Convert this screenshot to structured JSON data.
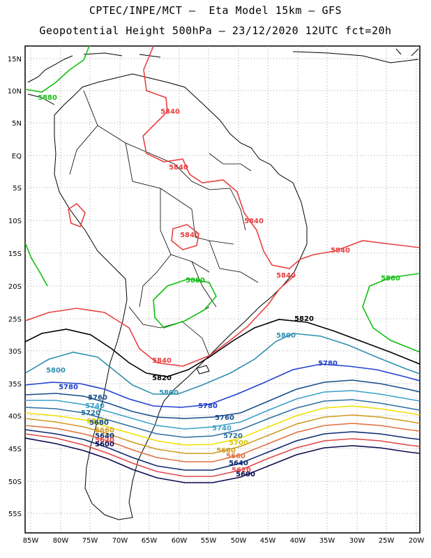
{
  "header": {
    "line1": "CPTEC/INPE/MCT –  Eta Model 15km – GFS",
    "line2": "Geopotential Height 500hPa – 23/12/2020 12UTC fct=20h"
  },
  "axes": {
    "lat_labels": [
      "15N",
      "10N",
      "5N",
      "EQ",
      "5S",
      "10S",
      "15S",
      "20S",
      "25S",
      "30S",
      "35S",
      "40S",
      "45S",
      "50S",
      "55S"
    ],
    "lon_labels": [
      "85W",
      "80W",
      "75W",
      "70W",
      "65W",
      "60W",
      "55W",
      "50W",
      "45W",
      "40W",
      "35W",
      "30W",
      "25W",
      "20W"
    ]
  },
  "colors": {
    "c5880": "#10c010",
    "c5840": "#e84040",
    "c5820": "#000000",
    "c5800": "#3090b0",
    "c5780": "#1f3fd0",
    "c5760": "#164c8c",
    "c5740": "#3aa0c8",
    "c5720": "#2c70a0",
    "c5700": "#f0e000",
    "c5680": "#d09a20",
    "c5660": "#e07040",
    "c5640": "#0c2a70",
    "c5620": "#e04848",
    "c5600": "#0a0a50"
  },
  "contour_labels": [
    {
      "text": "5880",
      "color": "#10c010"
    },
    {
      "text": "5880",
      "color": "#10c010"
    },
    {
      "text": "5880",
      "color": "#10c010"
    },
    {
      "text": "5840",
      "color": "#e84040"
    },
    {
      "text": "5840",
      "color": "#e84040"
    },
    {
      "text": "5840",
      "color": "#e84040"
    },
    {
      "text": "5840",
      "color": "#e84040"
    },
    {
      "text": "5840",
      "color": "#e84040"
    },
    {
      "text": "5840",
      "color": "#e84040"
    },
    {
      "text": "5840",
      "color": "#e84040"
    },
    {
      "text": "5820",
      "color": "#000000"
    },
    {
      "text": "5820",
      "color": "#000000"
    },
    {
      "text": "5800",
      "color": "#3090b0"
    },
    {
      "text": "5800",
      "color": "#3090b0"
    },
    {
      "text": "5800",
      "color": "#3090b0"
    },
    {
      "text": "5780",
      "color": "#1f3fd0"
    },
    {
      "text": "5780",
      "color": "#1f3fd0"
    },
    {
      "text": "5780",
      "color": "#1f3fd0"
    },
    {
      "text": "5760",
      "color": "#164c8c"
    },
    {
      "text": "5760",
      "color": "#164c8c"
    },
    {
      "text": "5740",
      "color": "#3aa0c8"
    },
    {
      "text": "5740",
      "color": "#3aa0c8"
    },
    {
      "text": "5720",
      "color": "#2c70a0"
    },
    {
      "text": "5720",
      "color": "#2c70a0"
    },
    {
      "text": "5700",
      "color": "#d8c400"
    },
    {
      "text": "5700",
      "color": "#d8c400"
    },
    {
      "text": "5680",
      "color": "#164c8c"
    },
    {
      "text": "5680",
      "color": "#d09a20"
    },
    {
      "text": "5660",
      "color": "#d09a20"
    },
    {
      "text": "5660",
      "color": "#e07040"
    },
    {
      "text": "5640",
      "color": "#0c2a70"
    },
    {
      "text": "5640",
      "color": "#0c2a70"
    },
    {
      "text": "5620",
      "color": "#e04848"
    },
    {
      "text": "5620",
      "color": "#e04848"
    },
    {
      "text": "5600",
      "color": "#0a0a50"
    },
    {
      "text": "5600",
      "color": "#0a0a50"
    }
  ]
}
